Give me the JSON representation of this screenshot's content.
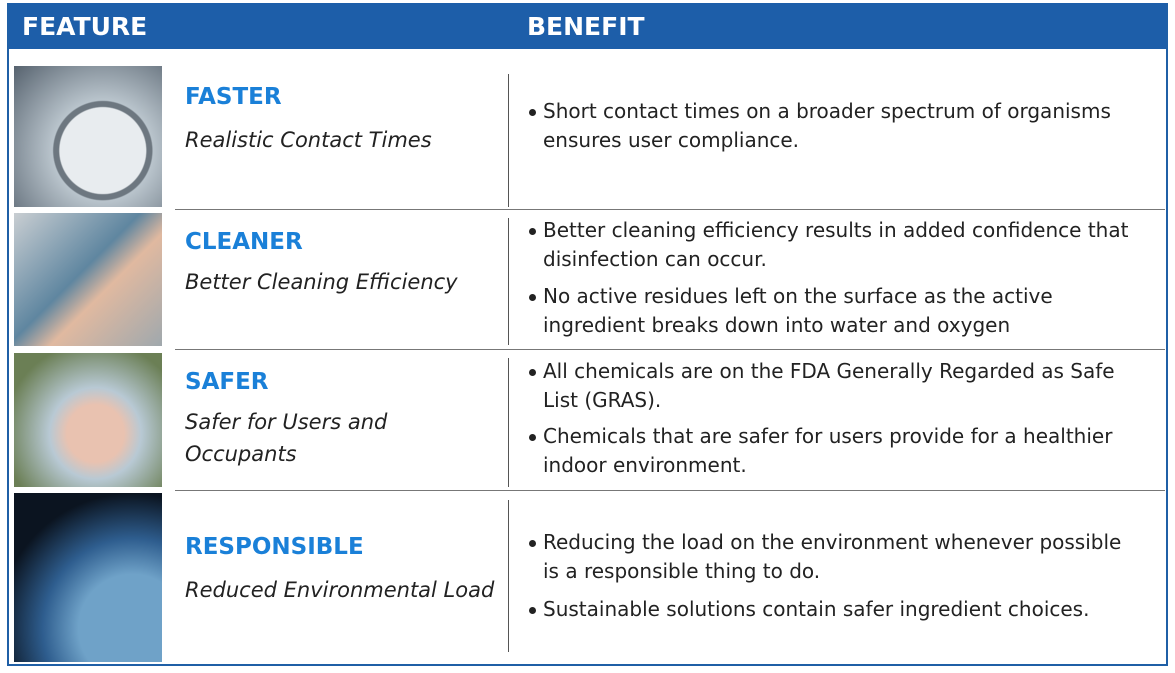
{
  "header": {
    "feature": "FEATURE",
    "benefit": "BENEFIT"
  },
  "rows": [
    {
      "title": "FASTER",
      "subtitle": "Realistic Contact Times",
      "benefits": [
        "Short contact times on a broader spectrum of organisms ensures user compliance."
      ]
    },
    {
      "title": "CLEANER",
      "subtitle": "Better Cleaning Efficiency",
      "benefits": [
        "Better cleaning efficiency results in added confidence that disinfection can occur.",
        "No active residues left on the surface as the active ingredient breaks down into water and oxygen"
      ]
    },
    {
      "title": "SAFER",
      "subtitle": "Safer for Users and Occupants",
      "benefits": [
        "All chemicals are on the FDA Generally Regarded as Safe List (GRAS).",
        "Chemicals that are safer for users provide for a healthier indoor environment."
      ]
    },
    {
      "title": "RESPONSIBLE",
      "subtitle": "Reduced Environmental Load",
      "benefits": [
        "Reducing the load on the environment whenever possible is a responsible thing to do.",
        "Sustainable solutions contain safer ingredient choices."
      ]
    }
  ]
}
